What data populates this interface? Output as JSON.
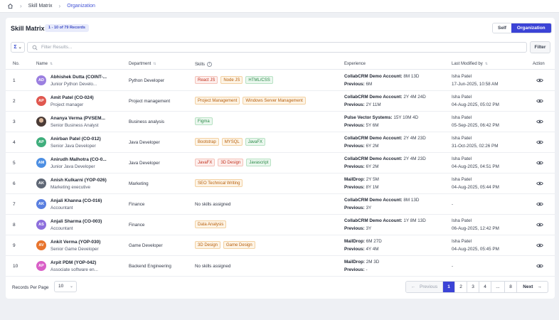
{
  "breadcrumb": {
    "home_icon": "home-icon",
    "items": [
      "Skill Matrix",
      "Organization"
    ]
  },
  "header": {
    "title": "Skill Matrix",
    "records_badge": "1 - 10 of 79 Records"
  },
  "view_toggle": {
    "self_label": "Self",
    "org_label": "Organization",
    "active": "Organization"
  },
  "toolbar": {
    "sigma_label": "Σ",
    "search_placeholder": "Filter Results...",
    "filter_label": "Filter"
  },
  "columns": {
    "no": "No.",
    "name": "Name",
    "department": "Department",
    "skills": "Skills",
    "experience": "Experience",
    "last_modified": "Last Modified by",
    "action": "Action"
  },
  "rows": [
    {
      "no": "1",
      "initials": "AD",
      "avatar_color": "#9b7fe0",
      "name": "Abhishek Dutta (COINT-...",
      "role": "Junior Python Develo...",
      "department": "Python Developer",
      "skills": [
        {
          "label": "React JS",
          "color": "red"
        },
        {
          "label": "Node JS",
          "color": "orange"
        },
        {
          "label": "HTML/CSS",
          "color": "green"
        }
      ],
      "exp1_k": "CollabCRM Demo Account:",
      "exp1_v": "8M 13D",
      "exp2_k": "Previous:",
      "exp2_v": "6M",
      "mod_by": "Isha Patel",
      "mod_at": "17-Jun-2025, 10:58 AM"
    },
    {
      "no": "2",
      "initials": "AP",
      "avatar_color": "#e0574f",
      "name": "Amit Patel (CO-024)",
      "role": "Project manager",
      "department": "Project management",
      "skills": [
        {
          "label": "Project Management",
          "color": "orange"
        },
        {
          "label": "Windows Server Management",
          "color": "orange"
        }
      ],
      "exp1_k": "CollabCRM Demo Account:",
      "exp1_v": "2Y 4M 24D",
      "exp2_k": "Previous:",
      "exp2_v": "2Y 11M",
      "mod_by": "Isha Patel",
      "mod_at": "04-Aug-2025, 05:02 PM"
    },
    {
      "no": "3",
      "initials": "",
      "avatar_color": "photo",
      "name": "Ananya Verma (PVSEM...",
      "role": "Senior Business Analyst",
      "department": "Business analysis",
      "skills": [
        {
          "label": "Figma",
          "color": "green"
        }
      ],
      "exp1_k": "Pulse Vector Systems:",
      "exp1_v": "15Y 10M 4D",
      "exp2_k": "Previous:",
      "exp2_v": "5Y 6M",
      "mod_by": "Isha Patel",
      "mod_at": "05-Sep-2025, 06:42 PM"
    },
    {
      "no": "4",
      "initials": "AP",
      "avatar_color": "#3fae7c",
      "name": "Anirban Patel (CO-012)",
      "role": "Senior Java Developer",
      "department": "Java Developer",
      "skills": [
        {
          "label": "Bootstrap",
          "color": "orange"
        },
        {
          "label": "MYSQL",
          "color": "orange"
        },
        {
          "label": "JavaFX",
          "color": "green"
        }
      ],
      "exp1_k": "CollabCRM Demo Account:",
      "exp1_v": "2Y 4M 23D",
      "exp2_k": "Previous:",
      "exp2_v": "6Y 2M",
      "mod_by": "Isha Patel",
      "mod_at": "31-Oct-2025, 02:26 PM"
    },
    {
      "no": "5",
      "initials": "AM",
      "avatar_color": "#4d8fe3",
      "name": "Anirudh Malhotra (CO-0...",
      "role": "Junior Java Developer",
      "department": "Java Developer",
      "skills": [
        {
          "label": "JavaFX",
          "color": "red"
        },
        {
          "label": "3D Design",
          "color": "red"
        },
        {
          "label": "Javascript",
          "color": "green"
        }
      ],
      "exp1_k": "CollabCRM Demo Account:",
      "exp1_v": "2Y 4M 23D",
      "exp2_k": "Previous:",
      "exp2_v": "6Y 2M",
      "mod_by": "Isha Patel",
      "mod_at": "04-Aug-2025, 04:51 PM"
    },
    {
      "no": "6",
      "initials": "AK",
      "avatar_color": "#5f6775",
      "name": "Anish Kulkarni (YOP-026)",
      "role": "Marketing executive",
      "department": "Marketing",
      "skills": [
        {
          "label": "SEO Technical Writing",
          "color": "orange"
        }
      ],
      "exp1_k": "MailDrop:",
      "exp1_v": "2Y 5M",
      "exp2_k": "Previous:",
      "exp2_v": "8Y 1M",
      "mod_by": "Isha Patel",
      "mod_at": "04-Aug-2025, 05:44 PM"
    },
    {
      "no": "7",
      "initials": "AK",
      "avatar_color": "#5a7fe0",
      "name": "Anjali Khanna (CO-016)",
      "role": "Accountant",
      "department": "Finance",
      "skills": [],
      "no_skills": "No skills assigned",
      "exp1_k": "CollabCRM Demo Account:",
      "exp1_v": "8M 13D",
      "exp2_k": "Previous:",
      "exp2_v": "3Y",
      "mod_by": "",
      "mod_at": "",
      "mod_dash": "-"
    },
    {
      "no": "8",
      "initials": "AS",
      "avatar_color": "#8d6fdc",
      "name": "Anjali Sharma (CO-003)",
      "role": "Accountant",
      "department": "Finance",
      "skills": [
        {
          "label": "Data Analysis",
          "color": "orange"
        }
      ],
      "exp1_k": "CollabCRM Demo Account:",
      "exp1_v": "1Y 8M 13D",
      "exp2_k": "Previous:",
      "exp2_v": "3Y",
      "mod_by": "Isha Patel",
      "mod_at": "06-Aug-2025, 12:42 PM"
    },
    {
      "no": "9",
      "initials": "AV",
      "avatar_color": "#e8742d",
      "name": "Ankit Verma (YOP-030)",
      "role": "Senior Game Developer",
      "department": "Game Developer",
      "skills": [
        {
          "label": "3D Design",
          "color": "orange"
        },
        {
          "label": "Game Design",
          "color": "orange"
        }
      ],
      "exp1_k": "MailDrop:",
      "exp1_v": "6M 27D",
      "exp2_k": "Previous:",
      "exp2_v": "4Y 4M",
      "mod_by": "Isha Patel",
      "mod_at": "04-Aug-2025, 05:45 PM"
    },
    {
      "no": "10",
      "initials": "AP",
      "avatar_color": "#d95fc7",
      "name": "Arpit PDM (YOP-042)",
      "role": "Associate software en...",
      "department": "Backend Engineering",
      "skills": [],
      "no_skills": "No skills assigned",
      "exp1_k": "MailDrop:",
      "exp1_v": "2M 3D",
      "exp2_k": "Previous:",
      "exp2_v": "-",
      "mod_by": "",
      "mod_at": "",
      "mod_dash": "-"
    }
  ],
  "footer": {
    "records_per_page_label": "Records Per Page",
    "records_per_page_value": "10",
    "pagination": {
      "prev_label": "Previous",
      "pages": [
        "1",
        "2",
        "3",
        "4",
        "...",
        "8"
      ],
      "current": "1",
      "next_label": "Next"
    }
  },
  "colors": {
    "accent": "#3b43d6",
    "tag_red": "#c2331f",
    "tag_orange": "#b8600d",
    "tag_green": "#2b8a48"
  }
}
